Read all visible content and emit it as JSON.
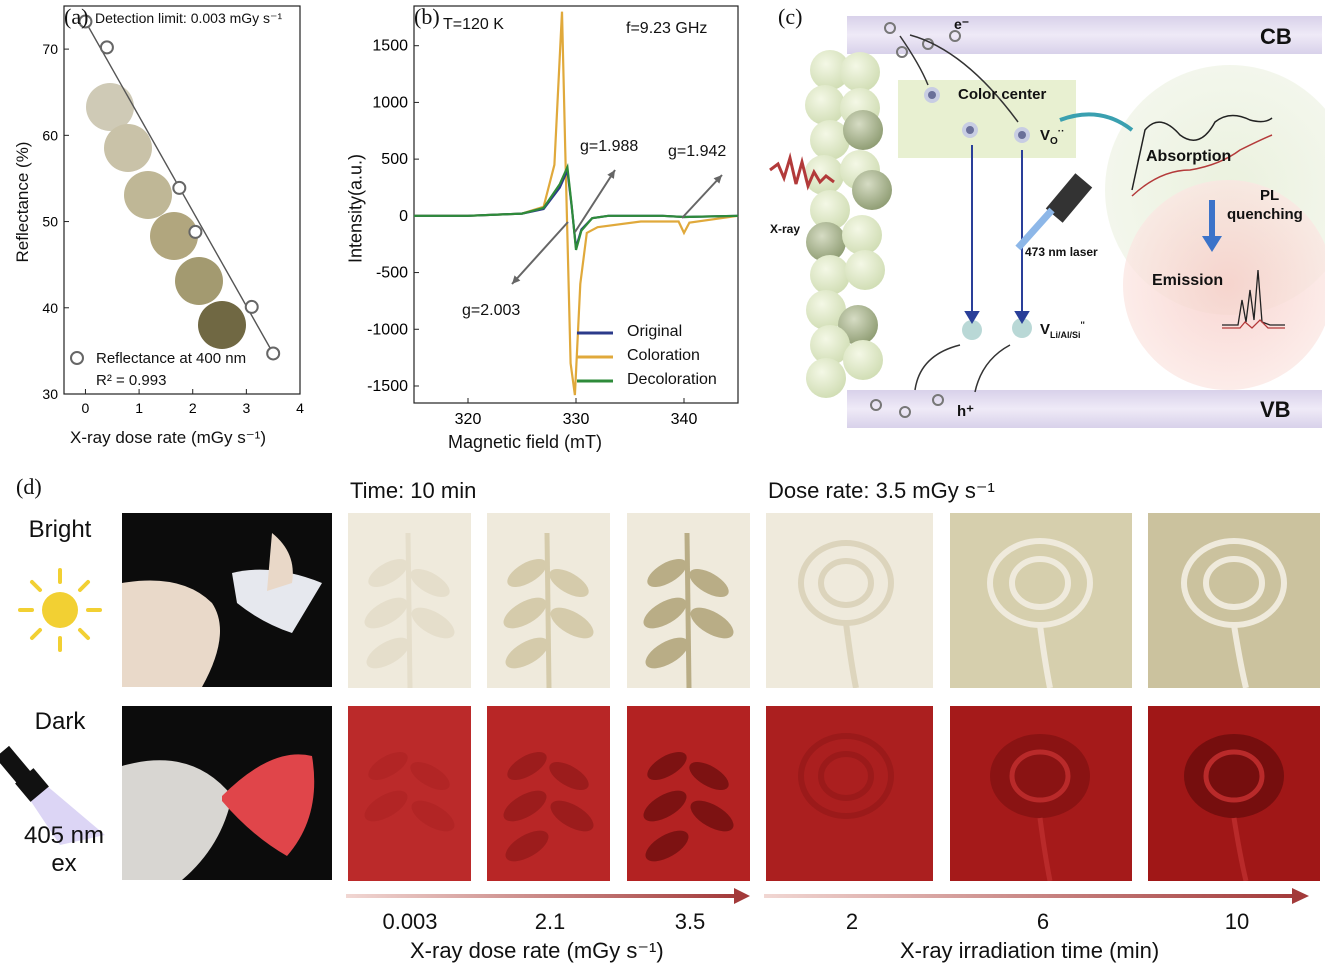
{
  "panel_a": {
    "letter": "(a)",
    "detection": "Detection limit: 0.003 mGy s⁻¹",
    "legend": "Reflectance at 400 nm",
    "r2": "R² = 0.993",
    "xlabel": "X-ray dose rate (mGy s⁻¹)",
    "ylabel": "Reflectance (%)"
  },
  "panel_b": {
    "letter": "(b)",
    "temp": "T=120 K",
    "freq": "f=9.23 GHz",
    "g1": "g=1.988",
    "g2": "g=1.942",
    "g3": "g=2.003",
    "xlabel": "Magnetic field (mT)",
    "ylabel": "Intensity(a.u.)"
  },
  "panel_c": {
    "letter": "(c)",
    "cb": "CB",
    "vb": "VB",
    "electron": "e⁻",
    "hole": "h⁺",
    "color_center": "Color center",
    "vo": "V",
    "vo_sub": "O",
    "vo_sup": "··",
    "vli": "V",
    "vli_sub": "Li/Al/Si",
    "vli_sup": "''",
    "xray": "X-ray",
    "laser": "473 nm laser",
    "absorption": "Absorption",
    "pl": "PL",
    "quenching": "quenching",
    "emission": "Emission"
  },
  "panel_d": {
    "letter": "(d)",
    "time_header": "Time: 10 min",
    "dose_header": "Dose rate: 3.5 mGy s⁻¹",
    "bright": "Bright",
    "dark": "Dark",
    "ex1": "405 nm",
    "ex2": "ex",
    "dose_values": [
      "0.003",
      "2.1",
      "3.5"
    ],
    "time_values": [
      "2",
      "6",
      "10"
    ],
    "dose_axis": "X-ray dose rate (mGy s⁻¹)",
    "time_axis": "X-ray irradiation time (min)"
  },
  "chart_data": [
    {
      "type": "scatter",
      "title": "",
      "xlabel": "X-ray dose rate (mGy s⁻¹)",
      "ylabel": "Reflectance (%)",
      "xlim": [
        -0.4,
        4
      ],
      "ylim": [
        30,
        75
      ],
      "xticks": [
        0,
        1,
        2,
        3,
        4
      ],
      "yticks": [
        30,
        40,
        50,
        60,
        70
      ],
      "series": [
        {
          "name": "Reflectance at 400 nm",
          "x": [
            0,
            0.4,
            1.75,
            2.05,
            3.1,
            3.5
          ],
          "y": [
            73.2,
            70.2,
            53.9,
            48.8,
            40.1,
            34.7
          ]
        }
      ],
      "fit_line": {
        "x": [
          0,
          3.5
        ],
        "y": [
          73.2,
          34.7
        ]
      },
      "annotations": [
        "Detection limit: 0.003 mGy s⁻¹",
        "R² = 0.993"
      ]
    },
    {
      "type": "line",
      "title": "",
      "xlabel": "Magnetic field (mT)",
      "ylabel": "Intensity(a.u.)",
      "xlim": [
        315,
        345
      ],
      "ylim": [
        -1650,
        1850
      ],
      "xticks": [
        320,
        330,
        340
      ],
      "yticks": [
        -1500,
        -1000,
        -500,
        0,
        500,
        1000,
        1500
      ],
      "legend_position": "bottom-right",
      "series": [
        {
          "name": "Original",
          "color": "#2b3a8a",
          "x": [
            315,
            320,
            325,
            327,
            328.5,
            329.2,
            329.6,
            330.0,
            330.5,
            331.5,
            333,
            338,
            340,
            345
          ],
          "y": [
            0,
            0,
            20,
            60,
            250,
            400,
            80,
            -280,
            -120,
            -20,
            0,
            0,
            -10,
            0
          ]
        },
        {
          "name": "Coloration",
          "color": "#e0a93b",
          "x": [
            315,
            320,
            325,
            327,
            328.0,
            328.7,
            329.0,
            329.5,
            329.9,
            330.4,
            331,
            332,
            336,
            339.5,
            340,
            340.5,
            345
          ],
          "y": [
            0,
            0,
            20,
            80,
            450,
            1800,
            600,
            -1300,
            -1580,
            -600,
            -150,
            -100,
            -50,
            -50,
            -150,
            -60,
            0
          ]
        },
        {
          "name": "Decoloration",
          "color": "#2e8b3a",
          "x": [
            315,
            320,
            325,
            327,
            328.5,
            329.2,
            329.6,
            330.0,
            330.5,
            331.5,
            333,
            338,
            340,
            345
          ],
          "y": [
            0,
            0,
            20,
            70,
            280,
            430,
            90,
            -300,
            -130,
            -20,
            0,
            0,
            -10,
            0
          ]
        }
      ],
      "annotations": [
        "T=120 K",
        "f=9.23 GHz",
        "g=1.988",
        "g=1.942",
        "g=2.003"
      ]
    }
  ],
  "colors": {
    "coloration": "#e0a93b",
    "original": "#2b3a8a",
    "decoloration": "#2e8b3a",
    "dark_red": "#b21e20",
    "arrow_red": "#a33a3a"
  }
}
